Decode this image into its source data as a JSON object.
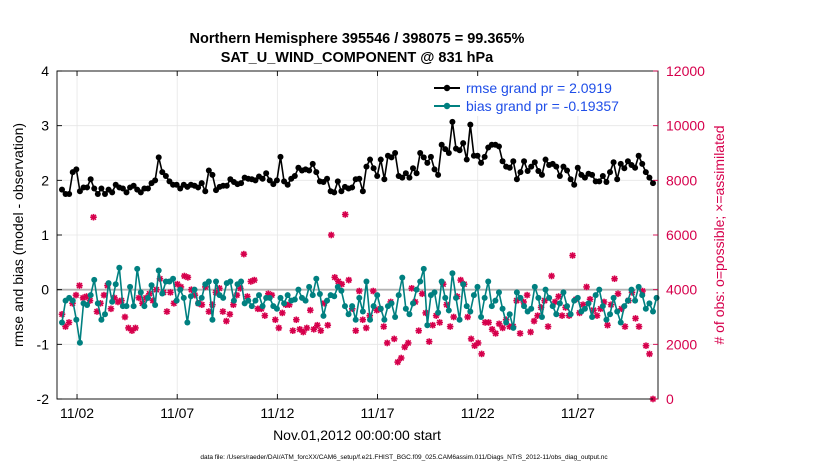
{
  "chart_data": {
    "type": "line",
    "title_line1": "Northern Hemisphere 395546 / 398075 = 99.365%",
    "title_line2": "SAT_U_WIND_COMPONENT @ 831 hPa",
    "xlabel": "Nov.01,2012 00:00:00 start",
    "ylabel": "rmse and bias (model - observation)",
    "y2label": "# of obs: o=possible; ×=assimilated",
    "footnote": "data file: /Users/raeder/DAI/ATM_forcXX/CAM6_setup/f.e21.FHIST_BGC.f09_025.CAM6assim.011/Diags_NTrS_2012-11/obs_diag_output.nc",
    "xlim": [
      0.5,
      30.5
    ],
    "ylim": [
      -2,
      4
    ],
    "y2lim": [
      0,
      12000
    ],
    "xtick_values": [
      1.5,
      6.5,
      11.5,
      16.5,
      21.5,
      26.5
    ],
    "xtick_labels": [
      "11/02",
      "11/07",
      "11/12",
      "11/17",
      "11/22",
      "11/27"
    ],
    "ytick_values": [
      -2,
      -1,
      0,
      1,
      2,
      3,
      4
    ],
    "ytick_labels": [
      "-2",
      "-1",
      "0",
      "1",
      "2",
      "3",
      "4"
    ],
    "y2tick_values": [
      0,
      2000,
      4000,
      6000,
      8000,
      10000,
      12000
    ],
    "y2tick_labels": [
      "0",
      "2000",
      "4000",
      "6000",
      "8000",
      "10000",
      "12000"
    ],
    "zero_line": 0,
    "legend_location": "top-right",
    "colors": {
      "rmse": "#000000",
      "bias": "#008080",
      "obs": "#d6004c",
      "zero": "#b3b3b3",
      "grid": "#e6e6e6"
    },
    "series": [
      {
        "name": "rmse grand pr = 2.0919",
        "color": "#000000",
        "axis": "left",
        "values": [
          1.83,
          1.75,
          1.75,
          2.15,
          2.2,
          1.8,
          1.87,
          1.87,
          2.02,
          1.85,
          1.75,
          1.85,
          1.75,
          1.83,
          1.78,
          1.92,
          1.87,
          1.85,
          1.78,
          1.87,
          1.9,
          1.83,
          1.78,
          1.85,
          1.85,
          1.95,
          2.0,
          2.42,
          2.15,
          2.08,
          1.98,
          1.92,
          1.92,
          1.85,
          1.92,
          1.88,
          1.92,
          1.9,
          1.87,
          1.95,
          1.8,
          2.18,
          2.1,
          1.82,
          1.88,
          1.9,
          1.9,
          2.02,
          1.97,
          1.93,
          1.95,
          2.05,
          2.03,
          2.02,
          2.0,
          2.07,
          2.03,
          2.13,
          2.0,
          1.93,
          2.0,
          2.43,
          1.98,
          1.92,
          2.03,
          2.08,
          2.23,
          2.18,
          2.2,
          2.18,
          2.3,
          2.15,
          1.98,
          1.97,
          2.03,
          1.8,
          1.78,
          1.98,
          1.8,
          1.88,
          1.85,
          1.87,
          2.02,
          2.03,
          1.8,
          2.25,
          2.38,
          2.22,
          2.08,
          2.38,
          2.02,
          2.45,
          2.42,
          2.5,
          2.08,
          2.05,
          2.13,
          2.05,
          2.22,
          2.13,
          2.5,
          2.42,
          2.32,
          2.43,
          2.2,
          2.1,
          2.65,
          2.57,
          2.5,
          3.07,
          2.58,
          2.55,
          2.68,
          2.38,
          3.02,
          2.45,
          2.45,
          2.32,
          2.43,
          2.6,
          2.65,
          2.65,
          2.62,
          2.35,
          2.25,
          2.23,
          2.35,
          2.02,
          2.15,
          2.35,
          2.17,
          2.25,
          2.33,
          2.17,
          2.1,
          2.38,
          2.28,
          2.3,
          2.25,
          2.08,
          2.25,
          2.18,
          2.02,
          1.92,
          2.23,
          2.1,
          2.05,
          2.12,
          2.1,
          1.98,
          1.98,
          2.08,
          1.97,
          2.15,
          2.33,
          2.02,
          2.3,
          2.22,
          2.35,
          2.28,
          2.23,
          2.45,
          2.3,
          2.15,
          2.05,
          1.95
        ]
      },
      {
        "name": "bias grand pr = -0.19357",
        "color": "#008080",
        "axis": "left",
        "values": [
          -0.6,
          -0.2,
          -0.15,
          -0.2,
          -0.55,
          -0.97,
          -0.25,
          -0.28,
          -0.1,
          0.18,
          -0.25,
          -0.55,
          -0.45,
          0.12,
          -0.22,
          0.1,
          0.4,
          -0.3,
          -0.3,
          0.05,
          -0.3,
          0.38,
          -0.05,
          -0.3,
          -0.15,
          0.08,
          -0.28,
          0.35,
          -0.07,
          0.15,
          0.15,
          0.2,
          -0.2,
          0.0,
          -0.15,
          -0.6,
          -0.12,
          0.0,
          -0.25,
          -0.15,
          0.1,
          0.15,
          -0.55,
          0.15,
          -0.1,
          -0.15,
          0.12,
          0.15,
          -0.2,
          0.1,
          0.15,
          -0.25,
          -0.2,
          -0.3,
          -0.2,
          -0.1,
          -0.3,
          -0.15,
          -0.15,
          -0.3,
          -0.35,
          -0.15,
          -0.25,
          -0.1,
          -0.2,
          -0.18,
          0.0,
          -0.15,
          -0.2,
          0.05,
          -0.1,
          0.2,
          -0.08,
          -0.48,
          -0.2,
          -0.1,
          -0.12,
          0.05,
          -0.02,
          -0.3,
          -0.45,
          -0.3,
          -0.55,
          -0.15,
          -0.4,
          0.15,
          -0.55,
          -0.3,
          -0.1,
          -0.35,
          -0.55,
          -0.3,
          -0.25,
          -0.5,
          -0.1,
          0.22,
          -0.35,
          -0.45,
          -0.25,
          0.0,
          0.15,
          0.38,
          -0.65,
          -0.1,
          -0.05,
          -0.42,
          0.15,
          -0.15,
          -0.38,
          0.3,
          -0.15,
          -0.55,
          0.1,
          -0.3,
          -0.4,
          -0.1,
          0.05,
          -0.5,
          -0.15,
          0.15,
          -0.3,
          -0.2,
          -0.05,
          -0.35,
          -0.6,
          -0.45,
          -0.7,
          -0.05,
          -0.15,
          -0.3,
          -0.4,
          -0.35,
          0.05,
          -0.15,
          -0.5,
          0.0,
          -0.15,
          -0.3,
          -0.45,
          -0.25,
          -0.05,
          -0.3,
          -0.45,
          -0.2,
          -0.15,
          -0.4,
          -0.35,
          -0.25,
          -0.5,
          -0.1,
          0.0,
          -0.3,
          -0.55,
          -0.45,
          -0.15,
          -0.4,
          -0.6,
          -0.3,
          -0.2,
          0.0,
          -0.2,
          0.05,
          -0.1,
          -0.35,
          -0.25,
          -0.4,
          -0.15
        ]
      },
      {
        "name": "# of obs assimilated",
        "color": "#d6004c",
        "axis": "right",
        "values": [
          3100,
          2650,
          2800,
          3500,
          3800,
          4150,
          3700,
          3750,
          3600,
          6650,
          3200,
          3500,
          3800,
          4150,
          3300,
          3700,
          3550,
          3600,
          3000,
          2600,
          2500,
          2600,
          3700,
          3500,
          3700,
          3850,
          3600,
          4000,
          4400,
          3900,
          3200,
          3900,
          3500,
          4200,
          4100,
          4500,
          4450,
          4000,
          3800,
          3500,
          3450,
          4100,
          3200,
          3450,
          3900,
          4050,
          3200,
          2850,
          3100,
          3450,
          3800,
          4050,
          5300,
          3750,
          4300,
          4350,
          3300,
          3300,
          3050,
          3850,
          3800,
          2900,
          2600,
          3150,
          3450,
          3450,
          2500,
          2900,
          2550,
          2450,
          2600,
          3250,
          2550,
          2700,
          2500,
          3500,
          2700,
          6000,
          4450,
          4300,
          4200,
          6750,
          4350,
          3300,
          2500,
          3950,
          2900,
          2600,
          3050,
          3950,
          3250,
          3300,
          2650,
          2050,
          3550,
          2200,
          1350,
          1500,
          1900,
          2050,
          4050,
          3550,
          2500,
          3850,
          3150,
          2100,
          2700,
          3050,
          2800,
          4200,
          3450,
          2650,
          3000,
          3750,
          4350,
          4200,
          3000,
          2200,
          1950,
          2050,
          1650,
          2800,
          2800,
          2550,
          2400,
          2750,
          2600,
          2900,
          2650,
          2650,
          3600,
          2400,
          3550,
          3800,
          2450,
          2850,
          3050,
          3350,
          3600,
          2650,
          4500,
          3550,
          3750,
          3050,
          3350,
          3050,
          5250,
          3650,
          3150,
          3450,
          4100,
          3650,
          3250,
          3050,
          3300,
          3550,
          2700,
          3450,
          4400,
          3850,
          3300,
          2650,
          3600,
          3900,
          2950,
          2650,
          3950,
          1950,
          1650,
          0
        ]
      }
    ]
  }
}
